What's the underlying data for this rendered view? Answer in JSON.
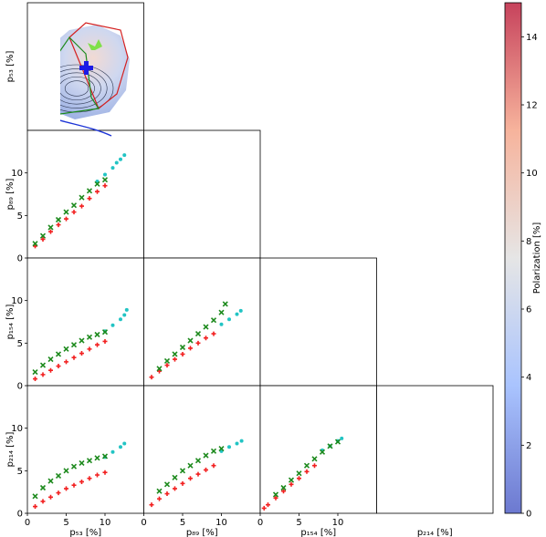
{
  "chart_data": {
    "type": "scatter",
    "layout": "corner-plot",
    "variables": [
      "p53",
      "p89",
      "p154",
      "p214"
    ],
    "axis_labels": {
      "p53": "p₅₃ [%]",
      "p89": "p₈₉ [%]",
      "p154": "p₁₅₄ [%]",
      "p214": "p₂₁₄ [%]"
    },
    "x_ticks": [
      0,
      5,
      10
    ],
    "y_ticks": [
      0,
      5,
      10
    ],
    "xlim": [
      0,
      15
    ],
    "ylim": [
      0,
      15
    ],
    "diagonal": "polarization-maps",
    "colorbar": {
      "label": "Polarization [%]",
      "ticks": [
        0,
        2,
        4,
        6,
        8,
        10,
        12,
        14
      ],
      "range": [
        0,
        15
      ],
      "colormap": "coolwarm",
      "low_color": "#5a74c9",
      "mid_color": "#ececec",
      "high_color": "#c75a5f"
    },
    "series_colors": {
      "red": "#f22020",
      "green": "#1d8a1d",
      "cyan": "#22c4c4"
    },
    "pairs": [
      {
        "x": "p53",
        "y": "p89",
        "red": [
          [
            1,
            1.4
          ],
          [
            2,
            2.2
          ],
          [
            3,
            3.1
          ],
          [
            4,
            3.9
          ],
          [
            5,
            4.6
          ],
          [
            6,
            5.4
          ],
          [
            7,
            6.1
          ],
          [
            8,
            7.0
          ],
          [
            9,
            7.8
          ],
          [
            10,
            8.5
          ]
        ],
        "green": [
          [
            1,
            1.7
          ],
          [
            2,
            2.6
          ],
          [
            3,
            3.6
          ],
          [
            4,
            4.5
          ],
          [
            5,
            5.4
          ],
          [
            6,
            6.2
          ],
          [
            7,
            7.1
          ],
          [
            8,
            7.9
          ],
          [
            9,
            8.7
          ],
          [
            10,
            9.2
          ]
        ],
        "cyan": [
          [
            9,
            9.0
          ],
          [
            10,
            9.8
          ],
          [
            11,
            10.6
          ],
          [
            11.5,
            11.2
          ],
          [
            12,
            11.6
          ],
          [
            12.5,
            12.1
          ]
        ]
      },
      {
        "x": "p53",
        "y": "p154",
        "red": [
          [
            1,
            0.8
          ],
          [
            2,
            1.3
          ],
          [
            3,
            1.8
          ],
          [
            4,
            2.3
          ],
          [
            5,
            2.8
          ],
          [
            6,
            3.3
          ],
          [
            7,
            3.8
          ],
          [
            8,
            4.3
          ],
          [
            9,
            4.8
          ],
          [
            10,
            5.2
          ]
        ],
        "green": [
          [
            1,
            1.6
          ],
          [
            2,
            2.4
          ],
          [
            3,
            3.1
          ],
          [
            4,
            3.7
          ],
          [
            5,
            4.3
          ],
          [
            6,
            4.8
          ],
          [
            7,
            5.3
          ],
          [
            8,
            5.7
          ],
          [
            9,
            6.0
          ],
          [
            10,
            6.3
          ]
        ],
        "cyan": [
          [
            10,
            6.4
          ],
          [
            11,
            7.1
          ],
          [
            12,
            7.8
          ],
          [
            12.5,
            8.3
          ],
          [
            12.8,
            8.9
          ]
        ]
      },
      {
        "x": "p53",
        "y": "p214",
        "red": [
          [
            1,
            0.8
          ],
          [
            2,
            1.4
          ],
          [
            3,
            1.9
          ],
          [
            4,
            2.4
          ],
          [
            5,
            2.9
          ],
          [
            6,
            3.3
          ],
          [
            7,
            3.7
          ],
          [
            8,
            4.1
          ],
          [
            9,
            4.5
          ],
          [
            10,
            4.8
          ]
        ],
        "green": [
          [
            1,
            2.0
          ],
          [
            2,
            3.0
          ],
          [
            3,
            3.8
          ],
          [
            4,
            4.4
          ],
          [
            5,
            5.0
          ],
          [
            6,
            5.5
          ],
          [
            7,
            5.9
          ],
          [
            8,
            6.2
          ],
          [
            9,
            6.5
          ],
          [
            10,
            6.7
          ]
        ],
        "cyan": [
          [
            10,
            6.6
          ],
          [
            11,
            7.2
          ],
          [
            12,
            7.8
          ],
          [
            12.5,
            8.2
          ]
        ]
      },
      {
        "x": "p89",
        "y": "p154",
        "red": [
          [
            1,
            1.0
          ],
          [
            2,
            1.7
          ],
          [
            3,
            2.4
          ],
          [
            4,
            3.1
          ],
          [
            5,
            3.7
          ],
          [
            6,
            4.4
          ],
          [
            7,
            5.0
          ],
          [
            8,
            5.6
          ],
          [
            9,
            6.1
          ]
        ],
        "green": [
          [
            2,
            2.0
          ],
          [
            3,
            2.9
          ],
          [
            4,
            3.7
          ],
          [
            5,
            4.5
          ],
          [
            6,
            5.3
          ],
          [
            7,
            6.1
          ],
          [
            8,
            6.9
          ],
          [
            9,
            7.7
          ],
          [
            10,
            8.6
          ],
          [
            10.5,
            9.6
          ]
        ],
        "cyan": [
          [
            10,
            7.2
          ],
          [
            11,
            7.8
          ],
          [
            12,
            8.4
          ],
          [
            12.5,
            8.8
          ]
        ]
      },
      {
        "x": "p89",
        "y": "p214",
        "red": [
          [
            1,
            1.0
          ],
          [
            2,
            1.7
          ],
          [
            3,
            2.3
          ],
          [
            4,
            2.9
          ],
          [
            5,
            3.5
          ],
          [
            6,
            4.1
          ],
          [
            7,
            4.6
          ],
          [
            8,
            5.1
          ],
          [
            9,
            5.6
          ]
        ],
        "green": [
          [
            2,
            2.6
          ],
          [
            3,
            3.4
          ],
          [
            4,
            4.2
          ],
          [
            5,
            5.0
          ],
          [
            6,
            5.6
          ],
          [
            7,
            6.2
          ],
          [
            8,
            6.8
          ],
          [
            9,
            7.3
          ],
          [
            10,
            7.6
          ]
        ],
        "cyan": [
          [
            10,
            7.3
          ],
          [
            11,
            7.8
          ],
          [
            12,
            8.2
          ],
          [
            12.6,
            8.5
          ]
        ]
      },
      {
        "x": "p154",
        "y": "p214",
        "red": [
          [
            0.5,
            0.6
          ],
          [
            1,
            1.0
          ],
          [
            2,
            1.8
          ],
          [
            3,
            2.6
          ],
          [
            4,
            3.4
          ],
          [
            5,
            4.1
          ],
          [
            6,
            4.9
          ],
          [
            7,
            5.6
          ]
        ],
        "green": [
          [
            2,
            2.2
          ],
          [
            3,
            3.0
          ],
          [
            4,
            3.9
          ],
          [
            5,
            4.7
          ],
          [
            6,
            5.6
          ],
          [
            7,
            6.4
          ],
          [
            8,
            7.2
          ],
          [
            9,
            7.9
          ],
          [
            10,
            8.4
          ]
        ],
        "cyan": [
          [
            8,
            7.4
          ],
          [
            9,
            7.9
          ],
          [
            10,
            8.5
          ],
          [
            10.5,
            8.8
          ]
        ]
      }
    ]
  }
}
